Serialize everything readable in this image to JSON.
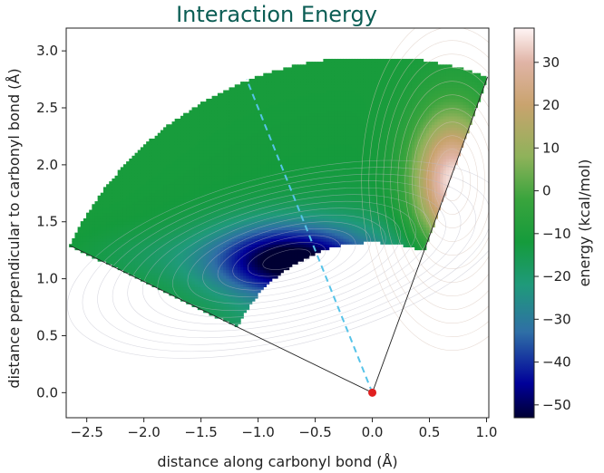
{
  "chart_data": {
    "type": "heatmap",
    "title": "Interaction Energy",
    "xlabel": "distance along carbonyl bond (Å)",
    "ylabel": "distance perpendicular to carbonyl bond (Å)",
    "xlim": [
      -2.68,
      1.02
    ],
    "ylim": [
      -0.22,
      3.2
    ],
    "xticks": [
      -2.5,
      -2.0,
      -1.5,
      -1.0,
      -0.5,
      0.0,
      0.5,
      1.0
    ],
    "xtick_labels": [
      "−2.5",
      "−2.0",
      "−1.5",
      "−1.0",
      "−0.5",
      "0.0",
      "0.5",
      "1.0"
    ],
    "yticks": [
      0.0,
      0.5,
      1.0,
      1.5,
      2.0,
      2.5,
      3.0
    ],
    "ytick_labels": [
      "0.0",
      "0.5",
      "1.0",
      "1.5",
      "2.0",
      "2.5",
      "3.0"
    ],
    "colorbar": {
      "label": "energy (kcal/mol)",
      "range": [
        -53,
        38
      ],
      "ticks": [
        30,
        20,
        10,
        0,
        -10,
        -20,
        -30,
        -40,
        -50
      ],
      "tick_labels": [
        "30",
        "20",
        "10",
        "0",
        "−10",
        "−20",
        "−30",
        "−40",
        "−50"
      ],
      "colors": [
        "#000033",
        "#000099",
        "#2f6fa6",
        "#1f9a7a",
        "#159b3c",
        "#39a43d",
        "#8fb25a",
        "#c9a36e",
        "#e0b4a6",
        "#fff5f5"
      ],
      "color_stops": [
        -53,
        -45,
        -33,
        -22,
        -12,
        -2,
        8,
        20,
        30,
        38
      ]
    },
    "region": {
      "origin": [
        0.0,
        0.0
      ],
      "angle_min_deg": 70,
      "angle_max_deg": 154,
      "r_min": 1.32,
      "r_max": 2.95,
      "y_cap": 2.92
    },
    "energy_features": {
      "minimum": {
        "x": -0.75,
        "y": 1.17,
        "energy": -53
      },
      "maximum": {
        "x": 0.7,
        "y": 1.85,
        "energy": 37
      },
      "baseline_energy": -11
    },
    "sector_lines": {
      "angles_deg": [
        70,
        154
      ],
      "length": 2.95
    },
    "dashed_line": {
      "from": [
        0.0,
        0.0
      ],
      "to": [
        -1.1,
        2.75
      ],
      "color": "#56c3e8"
    },
    "origin_marker": {
      "x": 0.0,
      "y": 0.0,
      "color": "#e02020"
    }
  }
}
